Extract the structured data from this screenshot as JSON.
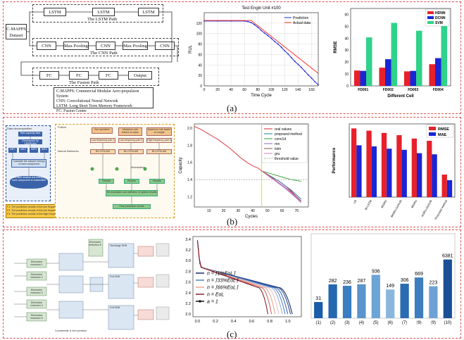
{
  "panels": {
    "a": {
      "label": "(a)",
      "diagram": {
        "dataset": "C-MAPPS\nDataset",
        "lstm_blocks": [
          "LSTM",
          "LSTM",
          "LSTM"
        ],
        "lstm_path": "The LSTM Path",
        "cnn_blocks": [
          "CNN",
          "Max Pooling",
          "CNN",
          "Max Pooling",
          "CNN"
        ],
        "cnn_path": "The CNN Path",
        "fc_blocks": [
          "FC",
          "FC",
          "FC"
        ],
        "output": "Output",
        "fusion_path": "The Fusion Path",
        "legend": [
          "C-MAPPS: Commercial Modular Aero-propulsion System",
          "CNN: Convolutional Neural Network",
          "LSTM: Long Short Term Memory Framework",
          "FC: Fusion Centre"
        ]
      }
    },
    "b": {
      "label": "(b)",
      "diagram": {
        "left_title": "Data decomposition",
        "left_boxes": [
          "Raw capacity data",
          "Decompose by CEEMDAN",
          "IMF1",
          "IMF2",
          "IMF3",
          "IMFn",
          "Calculate the sample entropy of each component",
          "Determine whether the entropy of each component is reasonable"
        ],
        "prediction_notes": [
          "F1: The prediction results of the low frequency part",
          "F2: The prediction results of the low frequency part",
          "F3: The prediction results of the high frequency part"
        ],
        "fusion_label": "Fusion",
        "neural_label": "Neural Networks",
        "top_boxes": [
          "Low frequency part 1",
          "Low frequency part 2",
          "High frequency part 3"
        ],
        "mid_boxes": [
          "Bi-LSTM-AM",
          "Bi-LSTM-AM",
          "Bi-LSTM-AM"
        ],
        "heads": [
          "Ave operation",
          "Maximum rule based on value",
          "Maximum rule based on weight"
        ],
        "bottom_boxes": [
          "Results",
          "Results",
          "Results",
          "Re-evaluation and selection of optimal results",
          "Final prediction results"
        ],
        "min_label": "Minimization"
      }
    },
    "c": {
      "label": "(c)",
      "diagram": {
        "blocks": [
          "Dimension reduction 1",
          "Dimension reduction 2",
          "Dimension reduction 3",
          "Dimension reduction 4",
          "Dimension reduction 5",
          "Dimension reduction 6"
        ],
        "right_titles": [
          "Discharge DNN",
          "Full DNN",
          "Full DNN"
        ],
        "bottom_note": "Concatenate & next predictor"
      }
    }
  },
  "watermark": "@ 锂电前沿",
  "colors": {
    "panel_border": "#d9534f",
    "hdnn": "#e8202a",
    "dcnn": "#1a25d6",
    "svm": "#2fd28a",
    "rmse": "#e8202a",
    "mae": "#1a25d6",
    "yellow_line": "#f2e027",
    "bar_c": "#1f6eb5"
  },
  "chart_data": [
    {
      "type": "line",
      "title": "Test Engin Unit #100",
      "xlabel": "Time  Cycle",
      "ylabel": "RUL",
      "xlim": [
        0,
        170
      ],
      "ylim": [
        0,
        140
      ],
      "xticks": [
        0,
        20,
        40,
        60,
        80,
        100,
        120,
        140,
        160
      ],
      "yticks": [
        0,
        20,
        40,
        60,
        80,
        100,
        120
      ],
      "legend_position": "top-right",
      "series": [
        {
          "name": "Prediction",
          "color": "#1a25d6",
          "marker": "dot",
          "x": [
            0,
            20,
            40,
            60,
            65,
            70,
            75,
            80,
            85,
            90,
            95,
            100,
            105,
            110,
            115,
            120,
            125,
            130,
            135,
            140,
            145,
            150,
            155,
            160,
            165,
            170
          ],
          "y": [
            124,
            124,
            124,
            124,
            123,
            121,
            117,
            112,
            106,
            101,
            96,
            91,
            85,
            80,
            74,
            67,
            61,
            54,
            47,
            41,
            35,
            28,
            21,
            15,
            8,
            2
          ]
        },
        {
          "name": "Actual data",
          "color": "#ff3b2e",
          "x": [
            0,
            70,
            170
          ],
          "y": [
            125,
            125,
            24
          ]
        }
      ]
    },
    {
      "type": "bar",
      "xlabel": "Different Cell",
      "ylabel": "RMSE",
      "ylim": [
        0,
        65
      ],
      "yticks": [
        0,
        10,
        20,
        30,
        40,
        50,
        60
      ],
      "categories": [
        "FD001",
        "FD002",
        "FD003",
        "FD004"
      ],
      "legend_position": "top-right",
      "series": [
        {
          "name": "HDNN",
          "color": "#e8202a",
          "values": [
            12.9,
            15.3,
            12.2,
            18.2
          ]
        },
        {
          "name": "DCNN",
          "color": "#1a25d6",
          "values": [
            12.6,
            22.4,
            12.6,
            23.3
          ]
        },
        {
          "name": "SVM",
          "color": "#2fd28a",
          "values": [
            40.7,
            52.9,
            46.3,
            60.0
          ]
        }
      ]
    },
    {
      "type": "line",
      "xlabel": "Cycles",
      "ylabel": "Capacity",
      "xlim": [
        0,
        78
      ],
      "ylim": [
        1.08,
        2.05
      ],
      "xticks": [
        10,
        20,
        30,
        40,
        50,
        60,
        70
      ],
      "yticks": [
        1.2,
        1.4,
        1.6,
        1.8,
        2.0
      ],
      "legend_position": "top-right",
      "vline_x": 46,
      "series": [
        {
          "name": "real values",
          "color": "#d62728",
          "x": [
            0,
            4,
            8,
            12,
            16,
            20,
            24,
            28,
            32,
            36,
            40,
            44,
            46,
            50,
            54,
            58,
            62,
            66,
            70,
            73
          ],
          "y": [
            2.02,
            1.99,
            1.95,
            1.91,
            1.87,
            1.82,
            1.77,
            1.71,
            1.65,
            1.6,
            1.56,
            1.53,
            1.5,
            1.46,
            1.42,
            1.38,
            1.33,
            1.27,
            1.2,
            1.15
          ]
        },
        {
          "name": "proposed method",
          "color": "#1f77b4",
          "x": [
            46,
            50,
            54,
            58,
            62,
            66,
            70,
            73
          ],
          "y": [
            1.5,
            1.46,
            1.42,
            1.38,
            1.33,
            1.28,
            1.22,
            1.17
          ]
        },
        {
          "name": "conv1d",
          "color": "#2ca02c",
          "x": [
            46,
            50,
            54,
            58,
            62,
            66,
            70,
            73
          ],
          "y": [
            1.5,
            1.48,
            1.46,
            1.44,
            1.42,
            1.4,
            1.39,
            1.38
          ]
        },
        {
          "name": "rnn",
          "color": "#9467bd",
          "x": [
            46,
            50,
            54,
            58,
            62,
            66,
            70,
            73
          ],
          "y": [
            1.5,
            1.45,
            1.4,
            1.35,
            1.3,
            1.24,
            1.18,
            1.13
          ]
        },
        {
          "name": "lstm",
          "color": "#8c564b",
          "x": [
            46,
            50,
            54,
            58,
            62,
            66,
            70,
            73
          ],
          "y": [
            1.5,
            1.46,
            1.41,
            1.36,
            1.31,
            1.26,
            1.2,
            1.15
          ]
        },
        {
          "name": "gru",
          "color": "#e377c2",
          "x": [
            46,
            50,
            54,
            58,
            62,
            66,
            70,
            73
          ],
          "y": [
            1.5,
            1.45,
            1.4,
            1.36,
            1.31,
            1.25,
            1.19,
            1.14
          ]
        },
        {
          "name": "threshold value",
          "color": "#aaaaaa",
          "dashed": true,
          "x": [
            0,
            78
          ],
          "y": [
            1.4,
            1.4
          ]
        }
      ]
    },
    {
      "type": "bar",
      "ylabel": "Performance",
      "ylim": [
        0,
        0.065
      ],
      "categories": [
        "LR",
        "Bi-LSTM",
        "BiGRU",
        "BiGRU-GASVR",
        "BiGRU",
        "AGRU-GASVR",
        "Proposed method"
      ],
      "legend_position": "top-right",
      "series": [
        {
          "name": "RMSE",
          "color": "#e8202a",
          "values": [
            0.061,
            0.059,
            0.057,
            0.055,
            0.052,
            0.05,
            0.02
          ]
        },
        {
          "name": "MAE",
          "color": "#1a25d6",
          "values": [
            0.046,
            0.045,
            0.043,
            0.042,
            0.039,
            0.038,
            0.015
          ]
        }
      ]
    },
    {
      "type": "line",
      "xlim": [
        -0.05,
        1.15
      ],
      "ylim": [
        1.95,
        3.45
      ],
      "xticks": [
        0.0,
        0.2,
        0.4,
        0.6,
        0.8,
        1.0
      ],
      "yticks": [
        2.0,
        2.2,
        2.4,
        2.6,
        2.8,
        3.0,
        3.2,
        3.4
      ],
      "legend_position": "bottom-left",
      "legend": [
        {
          "label": "n = ⌈1%EoL⌉",
          "color": "#0b1d5c"
        },
        {
          "label": "n = ⌈33%EoL⌉",
          "color": "#4a78c4"
        },
        {
          "label": "n = ⌈66%EoL⌉",
          "color": "#e8a08c"
        },
        {
          "label": "n = EoL",
          "color": "#7a1020"
        },
        {
          "label": "a = 1",
          "color": "#000000",
          "marker": "dot"
        }
      ],
      "curve_end_x": [
        1.05,
        1.03,
        1.0,
        0.97,
        0.94,
        0.9,
        0.86,
        0.82,
        0.78
      ]
    },
    {
      "type": "bar",
      "categories": [
        "(1)",
        "(2)",
        "(3)",
        "(4)",
        "(5)",
        "(6)",
        "(7)",
        "(8)",
        "(9)",
        "(10)"
      ],
      "values": [
        31,
        282,
        236,
        287,
        936,
        149,
        306,
        669,
        223,
        6381
      ],
      "value_labels": [
        "31",
        "282",
        "236",
        "287",
        "936",
        "149",
        "306",
        "669",
        "223",
        "6381"
      ]
    }
  ]
}
